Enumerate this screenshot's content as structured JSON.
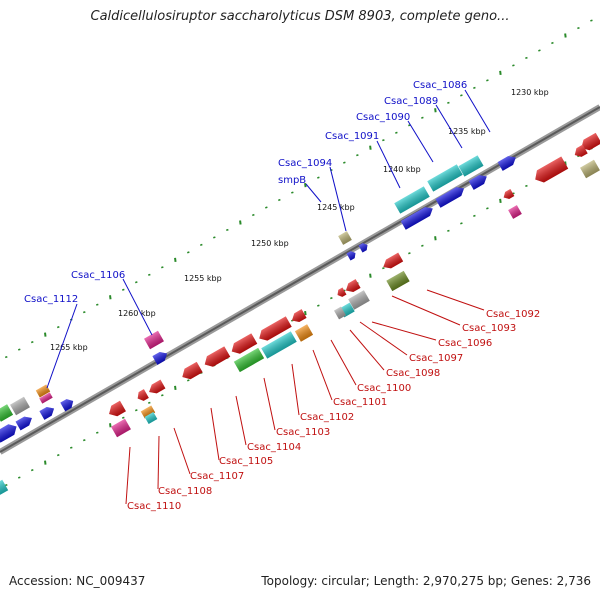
{
  "title": "Caldicellulosiruptor saccharolyticus DSM 8903, complete geno...",
  "accession": "Accession: NC_009437",
  "summary": "Topology: circular; Length: 2,970,275 bp; Genes: 2,736",
  "colors": {
    "backbone": "#7a7a7a",
    "tick": "#2a8a2a",
    "label_blue": "#1010c8",
    "label_red": "#c01010",
    "gene_red": "#e01010",
    "gene_blue": "#1010e0",
    "gene_cyan": "#20c8c8",
    "gene_green": "#30c030",
    "gene_magenta": "#e0208a",
    "gene_orange": "#f08a10",
    "gene_gray": "#a8a8a8",
    "gene_khaki": "#b8b070",
    "gene_olive": "#6a8a20"
  },
  "scale_labels": [
    "1230 kbp",
    "1235 kbp",
    "1240 kbp",
    "1245 kbp",
    "1250 kbp",
    "1255 kbp",
    "1260 kbp",
    "1265 kbp"
  ],
  "upper_labels": [
    "Csac_1086",
    "Csac_1089",
    "Csac_1090",
    "Csac_1091",
    "Csac_1094",
    "smpB",
    "Csac_1106",
    "Csac_1112"
  ],
  "lower_labels": [
    "Csac_1092",
    "Csac_1093",
    "Csac_1096",
    "Csac_1097",
    "Csac_1098",
    "Csac_1100",
    "Csac_1101",
    "Csac_1102",
    "Csac_1103",
    "Csac_1104",
    "Csac_1105",
    "Csac_1107",
    "Csac_1108",
    "Csac_1110"
  ]
}
